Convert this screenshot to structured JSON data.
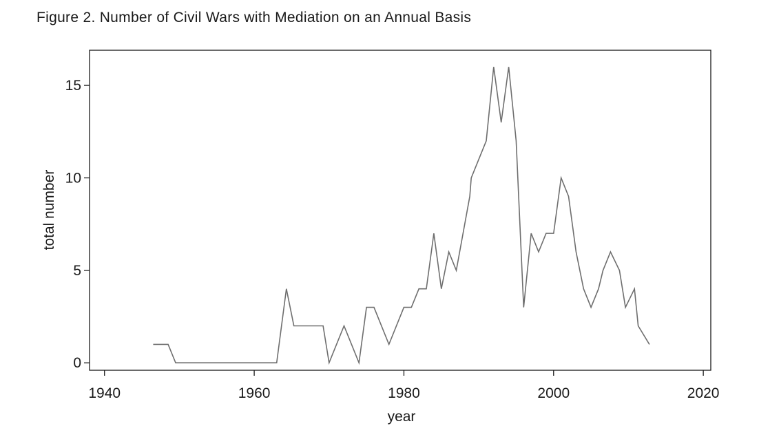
{
  "figure": {
    "caption": "Figure 2.  Number of Civil Wars with Mediation on an Annual Basis"
  },
  "chart_data": {
    "type": "line",
    "title": "",
    "xlabel": "year",
    "ylabel": "total number",
    "xlim": [
      1938,
      2021
    ],
    "ylim": [
      -0.4,
      16.9
    ],
    "x_ticks": [
      1940,
      1960,
      1980,
      2000,
      2020
    ],
    "y_ticks": [
      0,
      5,
      10,
      15
    ],
    "grid": false,
    "line_color": "#6e6e6e",
    "series": [
      {
        "x": [
          1946.5,
          1948.5,
          1949.5,
          1963.0,
          1964.3,
          1965.3,
          1969.2,
          1970.0,
          1972.0,
          1974.0,
          1975.0,
          1976.0,
          1978.0,
          1980.0,
          1981.0,
          1982.0,
          1983.0,
          1984.0,
          1985.0,
          1986.0,
          1987.0,
          1988.8,
          1989.0,
          1991.0,
          1992.0,
          1993.0,
          1994.0,
          1995.0,
          1996.0,
          1997.0,
          1998.0,
          1999.0,
          2000.0,
          2001.0,
          2002.0,
          2003.0,
          2004.0,
          2005.0,
          2006.0,
          2006.6,
          2007.6,
          2008.8,
          2009.6,
          2010.8,
          2011.3,
          2012.8
        ],
        "values": [
          1,
          1,
          0,
          0,
          4,
          2,
          2,
          0,
          2,
          0,
          3,
          3,
          1,
          3,
          3,
          4,
          4,
          7,
          4,
          6,
          5,
          9,
          10,
          12,
          16,
          13,
          16,
          12,
          3,
          7,
          6,
          7,
          7,
          10,
          9,
          6,
          4,
          3,
          4,
          5,
          6,
          5,
          3,
          4,
          2,
          1
        ]
      }
    ]
  }
}
